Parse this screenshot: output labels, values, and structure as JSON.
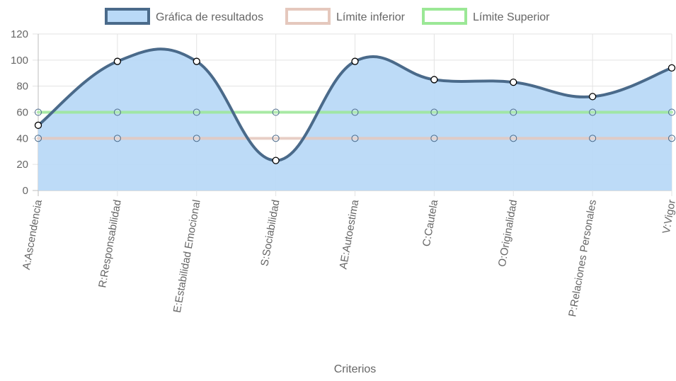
{
  "chart_data": {
    "type": "line",
    "categories": [
      "A:Ascendencia",
      "R:Responsabilidad",
      "E:Estabilidad Emocional",
      "S:Sociabilidad",
      "AE:Autoestima",
      "C:Cautela",
      "O:Originalidad",
      "P:Relaciones Personales",
      "V:Vigor"
    ],
    "series": [
      {
        "name": "Gráfica de resultados",
        "values": [
          50,
          99,
          99,
          23,
          99,
          85,
          83,
          72,
          94
        ],
        "color": "#4a6a8a",
        "fill": "#b9d9f7",
        "filled": true
      },
      {
        "name": "Límite inferior",
        "values": [
          40,
          40,
          40,
          40,
          40,
          40,
          40,
          40,
          40
        ],
        "color": "#e5c8bd",
        "fill": "#ffffff",
        "filled": false
      },
      {
        "name": "Límite Superior",
        "values": [
          60,
          60,
          60,
          60,
          60,
          60,
          60,
          60,
          60
        ],
        "color": "#9be896",
        "fill": "#ffffff",
        "filled": false
      }
    ],
    "xlabel": "Criterios",
    "ylabel": "",
    "ylim": [
      0,
      120
    ],
    "yticks": [
      0,
      20,
      40,
      60,
      80,
      100,
      120
    ],
    "grid": true,
    "legend_position": "top"
  }
}
